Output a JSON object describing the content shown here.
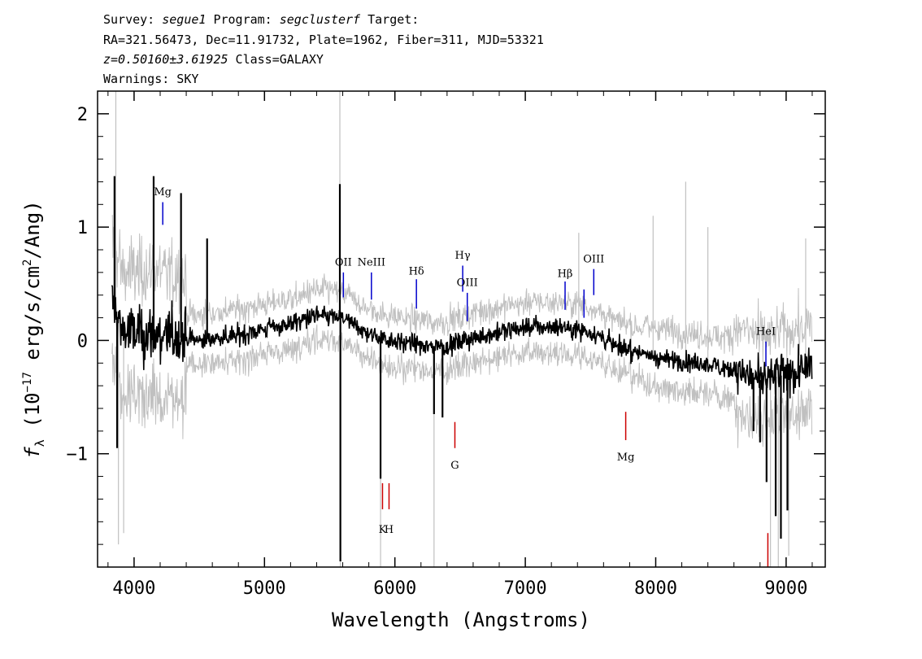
{
  "header": {
    "line1": {
      "survey_label": "Survey: ",
      "survey": "segue1",
      "program_label": " Program: ",
      "program": "segclusterf",
      "target_label": " Target:"
    },
    "line2": "RA=321.56473, Dec=11.91732, Plate=1962, Fiber=311, MJD=53321",
    "line3": {
      "z": "z=0.50160±3.61925",
      "class": " Class=GALAXY"
    },
    "line4": "Warnings: SKY"
  },
  "chart_data": {
    "type": "line",
    "xlabel": "Wavelength (Angstroms)",
    "ylabel_parts": {
      "f": "f",
      "sub": "λ",
      "open": " (10",
      "exp": "−17",
      "mid": " erg/s/cm",
      "exp2": "2",
      "close": "/Ang)"
    },
    "xlim": [
      3720,
      9300
    ],
    "ylim": [
      -2.0,
      2.2
    ],
    "x_ticks": [
      4000,
      5000,
      6000,
      7000,
      8000,
      9000
    ],
    "x_tick_labels": [
      "4000",
      "5000",
      "6000",
      "7000",
      "8000",
      "9000"
    ],
    "y_ticks": [
      -1,
      0,
      1,
      2
    ],
    "y_tick_labels": [
      "−1",
      "0",
      "1",
      "2"
    ],
    "colors": {
      "flux": "#000000",
      "error": "#c0c0c0",
      "emission": "#0000cc",
      "absorption": "#cc0000"
    },
    "continuum_points": [
      [
        3830,
        0.35
      ],
      [
        3900,
        0.1
      ],
      [
        4000,
        0.05
      ],
      [
        4200,
        0.05
      ],
      [
        4500,
        0.0
      ],
      [
        4800,
        0.05
      ],
      [
        5000,
        0.1
      ],
      [
        5200,
        0.15
      ],
      [
        5400,
        0.22
      ],
      [
        5600,
        0.2
      ],
      [
        5800,
        0.05
      ],
      [
        6000,
        0.0
      ],
      [
        6200,
        -0.05
      ],
      [
        6400,
        -0.05
      ],
      [
        6600,
        0.02
      ],
      [
        7000,
        0.12
      ],
      [
        7300,
        0.12
      ],
      [
        7500,
        0.08
      ],
      [
        7700,
        -0.05
      ],
      [
        8000,
        -0.15
      ],
      [
        8300,
        -0.2
      ],
      [
        8600,
        -0.25
      ],
      [
        8800,
        -0.35
      ],
      [
        9000,
        -0.3
      ],
      [
        9200,
        -0.25
      ]
    ],
    "flux_spikes": [
      [
        5578,
        1.38
      ],
      [
        5582,
        -1.95
      ],
      [
        5890,
        -1.22
      ],
      [
        6300,
        -0.65
      ],
      [
        6365,
        -0.68
      ],
      [
        3850,
        1.45
      ],
      [
        3870,
        -0.95
      ],
      [
        4150,
        1.45
      ],
      [
        4360,
        1.3
      ],
      [
        4560,
        0.9
      ],
      [
        8750,
        -0.8
      ],
      [
        8850,
        -1.25
      ],
      [
        8920,
        -1.55
      ],
      [
        8960,
        -1.75
      ],
      [
        9010,
        -1.5
      ],
      [
        8800,
        -0.9
      ]
    ],
    "error_spikes": [
      [
        5578,
        2.2
      ],
      [
        5582,
        -2.0
      ],
      [
        3860,
        2.2
      ],
      [
        3880,
        -1.8
      ],
      [
        3920,
        -1.7
      ],
      [
        6300,
        -2.0
      ],
      [
        5890,
        -2.0
      ],
      [
        8880,
        -2.0
      ],
      [
        8940,
        -2.0
      ],
      [
        9020,
        -1.9
      ],
      [
        8230,
        1.4
      ],
      [
        7980,
        1.1
      ],
      [
        8400,
        1.0
      ],
      [
        7410,
        0.95
      ],
      [
        9150,
        0.9
      ]
    ],
    "lines": [
      {
        "label": "Mg",
        "wl": 4220,
        "kind": "emission",
        "y1": 1.02,
        "y2": 1.22,
        "label_y": 1.28
      },
      {
        "label": "OII",
        "wl": 5605,
        "kind": "emission",
        "y1": 0.38,
        "y2": 0.6,
        "label_y": 0.66
      },
      {
        "label": "NeIII",
        "wl": 5820,
        "kind": "emission",
        "y1": 0.36,
        "y2": 0.6,
        "label_y": 0.66
      },
      {
        "label": "Hδ",
        "wl": 6165,
        "kind": "emission",
        "y1": 0.28,
        "y2": 0.54,
        "label_y": 0.58
      },
      {
        "label": "Hγ",
        "wl": 6520,
        "kind": "emission",
        "y1": 0.43,
        "y2": 0.66,
        "label_y": 0.72
      },
      {
        "label": "OIII",
        "wl": 6555,
        "kind": "emission",
        "y1": 0.17,
        "y2": 0.42,
        "label_y": 0.48
      },
      {
        "label": "Hβ",
        "wl": 7305,
        "kind": "emission",
        "y1": 0.27,
        "y2": 0.52,
        "label_y": 0.56
      },
      {
        "label": "",
        "wl": 7450,
        "kind": "emission",
        "y1": 0.2,
        "y2": 0.45,
        "label_y": 0
      },
      {
        "label": "OIII",
        "wl": 7525,
        "kind": "emission",
        "y1": 0.4,
        "y2": 0.63,
        "label_y": 0.69
      },
      {
        "label": "HeI",
        "wl": 8845,
        "kind": "emission",
        "y1": -0.23,
        "y2": -0.01,
        "label_y": 0.05
      },
      {
        "label": "G",
        "wl": 6460,
        "kind": "absorption",
        "y1": -0.72,
        "y2": -0.95,
        "label_y": -1.13
      },
      {
        "label": "Mg",
        "wl": 7770,
        "kind": "absorption",
        "y1": -0.63,
        "y2": -0.88,
        "label_y": -1.06
      },
      {
        "label": "K",
        "wl": 5905,
        "kind": "absorption",
        "y1": -1.26,
        "y2": -1.49,
        "label_y": -1.7
      },
      {
        "label": "H",
        "wl": 5955,
        "kind": "absorption",
        "y1": -1.26,
        "y2": -1.49,
        "label_y": -1.7
      },
      {
        "label": "",
        "wl": 8860,
        "kind": "absorption",
        "y1": -1.7,
        "y2": -2.0,
        "label_y": 0
      }
    ]
  }
}
